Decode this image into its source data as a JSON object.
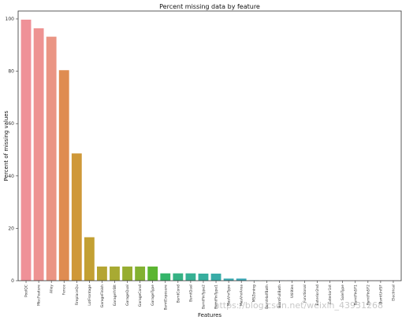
{
  "chart_data": {
    "type": "bar",
    "title": "Percent missing data by feature",
    "xlabel": "Features",
    "ylabel": "Percent of missing values",
    "ylim": [
      0,
      100
    ],
    "yticks": [
      0,
      20,
      40,
      60,
      80,
      100
    ],
    "grid": false,
    "categories": [
      "PoolQC",
      "MiscFeature",
      "Alley",
      "Fence",
      "FireplaceQu",
      "LotFrontage",
      "GarageFinish",
      "GarageYrBlt",
      "GarageQual",
      "GarageCond",
      "GarageType",
      "BsmtExposure",
      "BsmtCond",
      "BsmtQual",
      "BsmtFinType2",
      "BsmtFinType1",
      "MasVnrType",
      "MasVnrArea",
      "MSZoning",
      "BsmtHalfBath",
      "BsmtFullBath",
      "Utilities",
      "Functional",
      "Exterior2nd",
      "Exterior1st",
      "SaleType",
      "BsmtFinSF1",
      "BsmtFinSF2",
      "BsmtUnfSF",
      "Electrical"
    ],
    "values": [
      99.7,
      96.4,
      93.2,
      80.4,
      48.6,
      16.6,
      5.4,
      5.4,
      5.4,
      5.4,
      5.4,
      2.8,
      2.8,
      2.8,
      2.7,
      2.7,
      0.8,
      0.8,
      0.14,
      0.07,
      0.07,
      0.07,
      0.07,
      0.03,
      0.03,
      0.03,
      0.03,
      0.03,
      0.03,
      0.03
    ],
    "colors": [
      "#ef9198",
      "#ee9392",
      "#ea9584",
      "#df8c51",
      "#cf9838",
      "#c3a033",
      "#b5a532",
      "#a8aa32",
      "#97ad31",
      "#82b131",
      "#5bb531",
      "#34b569",
      "#35b284",
      "#36b093",
      "#37ae9e",
      "#38aca7",
      "#39aaaf",
      "#3aa8b7",
      "#3ca6c0",
      "#3ea3cb",
      "#4ea0d9",
      "#6f9ae8",
      "#8e94f1",
      "#ab8cf3",
      "#c483f3",
      "#d97bf2",
      "#e574e4",
      "#eb74d0",
      "#ee79be",
      "#f080ac"
    ],
    "watermark": "https://blog.csdn.net/weixin_43931268"
  }
}
